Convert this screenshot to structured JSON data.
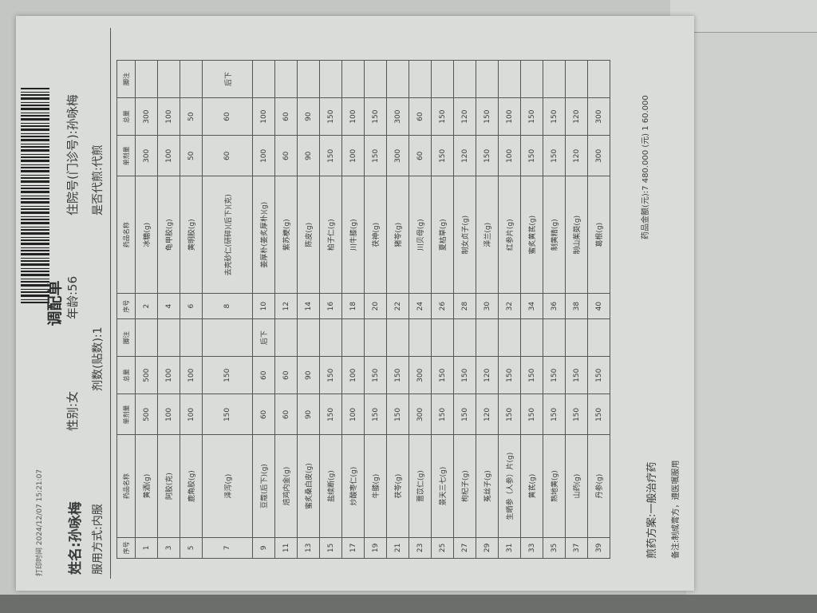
{
  "header": {
    "print_time": "打印时间 2024/12/07 15:21:07",
    "title": "调配单",
    "name": "姓名:孙咏梅",
    "gender": "性别:女",
    "age": "年龄:56",
    "hospital_no": "住院号(门诊号):孙咏梅",
    "usage": "服用方式:内服",
    "doses": "剂数(贴数):1",
    "decoct": "是否代煎:代煎"
  },
  "table": {
    "columns": [
      "序号",
      "药品名称",
      "单剂量",
      "总量",
      "脚注",
      "序号",
      "药品名称",
      "单剂量",
      "总量",
      "脚注"
    ],
    "rows": [
      [
        [
          "1",
          "黄酒(g)",
          "500",
          "500",
          ""
        ],
        [
          "2",
          "冰糖(g)",
          "300",
          "300",
          ""
        ]
      ],
      [
        [
          "3",
          "阿胶(克)",
          "100",
          "100",
          ""
        ],
        [
          "4",
          "龟甲胶(g)",
          "100",
          "100",
          ""
        ]
      ],
      [
        [
          "5",
          "鹿角胶(g)",
          "100",
          "100",
          ""
        ],
        [
          "6",
          "黄明胶(g)",
          "50",
          "50",
          ""
        ]
      ],
      [
        [
          "7",
          "泽泻(g)",
          "150",
          "150",
          ""
        ],
        [
          "8",
          "去壳砂仁(研碎)(后下)(克)",
          "60",
          "60",
          "后下"
        ]
      ],
      [
        [
          "9",
          "豆蔻(后下)(g)",
          "60",
          "60",
          "后下"
        ],
        [
          "10",
          "姜厚朴(姜炙厚朴)(g)",
          "100",
          "100",
          ""
        ]
      ],
      [
        [
          "11",
          "焙鸡内金(g)",
          "60",
          "60",
          ""
        ],
        [
          "12",
          "紫苏梗(g)",
          "60",
          "60",
          ""
        ]
      ],
      [
        [
          "13",
          "蜜炙桑白皮(g)",
          "90",
          "90",
          ""
        ],
        [
          "14",
          "陈皮(g)",
          "90",
          "90",
          ""
        ]
      ],
      [
        [
          "15",
          "盐续断(g)",
          "150",
          "150",
          ""
        ],
        [
          "16",
          "柏子仁(g)",
          "150",
          "150",
          ""
        ]
      ],
      [
        [
          "17",
          "炒酸枣仁(g)",
          "100",
          "100",
          ""
        ],
        [
          "18",
          "川牛膝(g)",
          "100",
          "100",
          ""
        ]
      ],
      [
        [
          "19",
          "牛膝(g)",
          "150",
          "150",
          ""
        ],
        [
          "20",
          "茯神(g)",
          "150",
          "150",
          ""
        ]
      ],
      [
        [
          "21",
          "茯苓(g)",
          "150",
          "150",
          ""
        ],
        [
          "22",
          "猪苓(g)",
          "300",
          "300",
          ""
        ]
      ],
      [
        [
          "23",
          "薏苡仁(g)",
          "300",
          "300",
          ""
        ],
        [
          "24",
          "川贝母(g)",
          "60",
          "60",
          ""
        ]
      ],
      [
        [
          "25",
          "景天三七(g)",
          "150",
          "150",
          ""
        ],
        [
          "26",
          "夏枯草(g)",
          "150",
          "150",
          ""
        ]
      ],
      [
        [
          "27",
          "枸杞子(g)",
          "150",
          "150",
          ""
        ],
        [
          "28",
          "制女贞子(g)",
          "120",
          "120",
          ""
        ]
      ],
      [
        [
          "29",
          "菟丝子(g)",
          "120",
          "120",
          ""
        ],
        [
          "30",
          "泽兰(g)",
          "150",
          "150",
          ""
        ]
      ],
      [
        [
          "31",
          "生晒参（人参）片(g)",
          "150",
          "150",
          ""
        ],
        [
          "32",
          "红参片(g)",
          "100",
          "100",
          ""
        ]
      ],
      [
        [
          "33",
          "黄芪(g)",
          "150",
          "150",
          ""
        ],
        [
          "34",
          "蜜炙黄芪(g)",
          "150",
          "150",
          ""
        ]
      ],
      [
        [
          "35",
          "熟地黄(g)",
          "150",
          "150",
          ""
        ],
        [
          "36",
          "制黄精(g)",
          "150",
          "150",
          ""
        ]
      ],
      [
        [
          "37",
          "山药(g)",
          "150",
          "150",
          ""
        ],
        [
          "38",
          "制山茱萸(g)",
          "120",
          "120",
          ""
        ]
      ],
      [
        [
          "39",
          "丹参(g)",
          "150",
          "150",
          ""
        ],
        [
          "40",
          "葛根(g)",
          "300",
          "300",
          ""
        ]
      ]
    ]
  },
  "footer": {
    "decoct_plan": "煎药方案:一般治疗药",
    "remark": "备注:制成膏方，遵医嘱服用",
    "amount": "药品金额(元):7 480.000 (元) 1 60.000"
  }
}
